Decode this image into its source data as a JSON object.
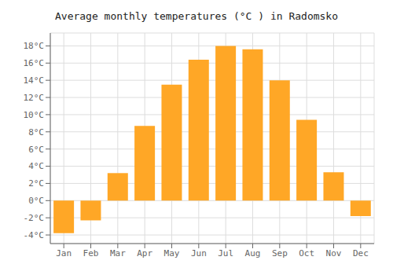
{
  "chart_data": {
    "type": "bar",
    "title": "Average monthly temperatures (°C ) in Radomsko",
    "categories": [
      "Jan",
      "Feb",
      "Mar",
      "Apr",
      "May",
      "Jun",
      "Jul",
      "Aug",
      "Sep",
      "Oct",
      "Nov",
      "Dec"
    ],
    "values": [
      -3.8,
      -2.3,
      3.2,
      8.7,
      13.5,
      16.4,
      18.0,
      17.6,
      14.0,
      9.4,
      3.3,
      -1.8
    ],
    "color": "#FFA726",
    "ylim": [
      -5,
      19.5
    ],
    "yticks": [
      {
        "value": -4,
        "label": "-4°C"
      },
      {
        "value": -2,
        "label": "-2°C"
      },
      {
        "value": 0,
        "label": "0°C"
      },
      {
        "value": 2,
        "label": "2°C"
      },
      {
        "value": 4,
        "label": "4°C"
      },
      {
        "value": 6,
        "label": "6°C"
      },
      {
        "value": 8,
        "label": "8°C"
      },
      {
        "value": 10,
        "label": "10°C"
      },
      {
        "value": 12,
        "label": "12°C"
      },
      {
        "value": 14,
        "label": "14°C"
      },
      {
        "value": 16,
        "label": "16°C"
      },
      {
        "value": 18,
        "label": "18°C"
      }
    ],
    "grid": true
  }
}
